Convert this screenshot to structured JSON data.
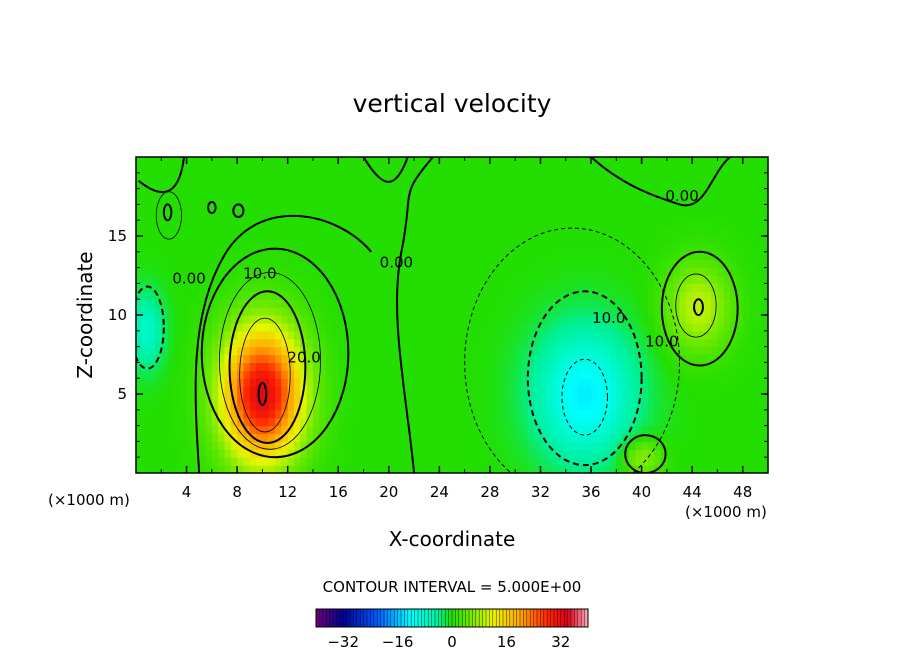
{
  "chart_data": {
    "type": "heatmap",
    "title": "vertical velocity",
    "xlabel": "X-coordinate",
    "ylabel": "Z-coordinate",
    "x_unit": "(×1000 m)",
    "z_unit": "(×1000 m)",
    "xlim": [
      0,
      50
    ],
    "ylim": [
      0,
      20
    ],
    "x_ticks": [
      "4",
      "8",
      "12",
      "16",
      "20",
      "24",
      "28",
      "32",
      "36",
      "40",
      "44",
      "48"
    ],
    "y_ticks": [
      "5",
      "10",
      "15"
    ],
    "contour_interval_text": "CONTOUR INTERVAL = 5.000E+00",
    "contour_labels": [
      {
        "text": "0.00",
        "x": 4.2,
        "z": 12.0
      },
      {
        "text": "10.0",
        "x": 9.8,
        "z": 12.3
      },
      {
        "text": "20.0",
        "x": 13.3,
        "z": 7.0
      },
      {
        "text": "0.00",
        "x": 20.6,
        "z": 13.0
      },
      {
        "text": "10.0",
        "x": 37.4,
        "z": 9.5
      },
      {
        "text": "10.0",
        "x": 41.6,
        "z": 8.0
      },
      {
        "text": "0.00",
        "x": 43.2,
        "z": 17.2
      }
    ],
    "colorbar": {
      "min": -40,
      "max": 40,
      "ticks": [
        "−32",
        "−16",
        "0",
        "16",
        "32"
      ],
      "tick_values": [
        -32,
        -16,
        0,
        16,
        32
      ]
    },
    "field_features": [
      {
        "kind": "updraft",
        "x": 10.0,
        "z": 5.0,
        "peak": 33
      },
      {
        "kind": "downdraft",
        "x": 35.5,
        "z": 5.0,
        "peak": -13
      },
      {
        "kind": "updraft",
        "x": 44.5,
        "z": 10.5,
        "peak": 10
      },
      {
        "kind": "updraft",
        "x": 40.0,
        "z": 1.0,
        "peak": 8
      },
      {
        "kind": "downdraft",
        "x": 0.8,
        "z": 9.0,
        "peak": -8
      }
    ]
  }
}
